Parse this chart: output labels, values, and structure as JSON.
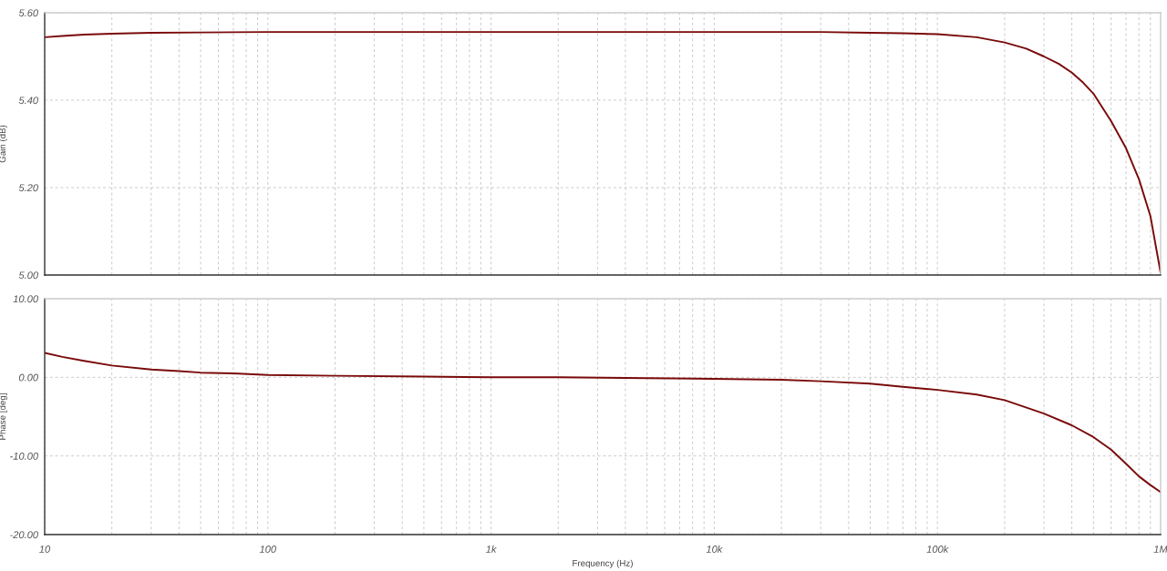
{
  "chart_data": [
    {
      "type": "line",
      "ylabel": "Gain (dB)",
      "log": "x",
      "grid": true,
      "tick_labels": "y",
      "xlim": [
        10,
        1000000
      ],
      "xticks": [
        {
          "value": 10,
          "label": null
        },
        {
          "value": 100,
          "label": null
        },
        {
          "value": 1000,
          "label": null
        },
        {
          "value": 10000,
          "label": null
        },
        {
          "value": 100000,
          "label": null
        },
        {
          "value": 1000000,
          "label": null
        }
      ],
      "ylim": [
        5.0,
        5.6
      ],
      "yticks": [
        {
          "value": 5.0,
          "label": "5.00"
        },
        {
          "value": 5.2,
          "label": "5.20"
        },
        {
          "value": 5.4,
          "label": "5.40"
        },
        {
          "value": 5.6,
          "label": "5.60"
        }
      ],
      "x": [
        10,
        12,
        15,
        20,
        30,
        50,
        100,
        200,
        500,
        1000,
        2000,
        5000,
        10000,
        20000,
        30000,
        50000,
        70000,
        100000,
        150000,
        200000,
        250000,
        300000,
        350000,
        400000,
        450000,
        500000,
        600000,
        700000,
        800000,
        900000,
        1000000
      ],
      "series": [
        {
          "color": "#7a0a0a",
          "values": [
            5.544,
            5.547,
            5.55,
            5.552,
            5.554,
            5.555,
            5.556,
            5.556,
            5.556,
            5.556,
            5.556,
            5.556,
            5.556,
            5.556,
            5.556,
            5.554,
            5.553,
            5.551,
            5.544,
            5.532,
            5.518,
            5.5,
            5.483,
            5.463,
            5.44,
            5.415,
            5.352,
            5.29,
            5.219,
            5.135,
            5.005
          ]
        }
      ]
    },
    {
      "type": "line",
      "ylabel": "Phase [deg]",
      "xlabel": "Frequency (Hz)",
      "log": "x",
      "grid": true,
      "xlim": [
        10,
        1000000
      ],
      "xticks": [
        10,
        100,
        {
          "value": 1000,
          "label": "1k"
        },
        {
          "value": 10000,
          "label": "10k"
        },
        {
          "value": 100000,
          "label": "100k"
        },
        {
          "value": 1000000,
          "label": "1M"
        }
      ],
      "ylim": [
        -20,
        10
      ],
      "yticks": [
        {
          "value": -20,
          "label": "-20.00"
        },
        {
          "value": -10,
          "label": "-10.00"
        },
        {
          "value": 0,
          "label": "0.00"
        },
        {
          "value": 10,
          "label": "10.00"
        }
      ],
      "x": [
        10,
        12,
        15,
        20,
        30,
        40,
        50,
        70,
        100,
        200,
        500,
        1000,
        2000,
        5000,
        10000,
        20000,
        30000,
        50000,
        70000,
        100000,
        150000,
        200000,
        300000,
        400000,
        500000,
        600000,
        700000,
        800000,
        900000,
        1000000
      ],
      "series": [
        {
          "color": "#7a0a0a",
          "values": [
            3.1,
            2.6,
            2.1,
            1.5,
            1.0,
            0.8,
            0.6,
            0.5,
            0.3,
            0.2,
            0.1,
            0.0,
            0.0,
            -0.1,
            -0.2,
            -0.3,
            -0.5,
            -0.8,
            -1.2,
            -1.6,
            -2.2,
            -2.9,
            -4.6,
            -6.1,
            -7.6,
            -9.2,
            -11.0,
            -12.6,
            -13.7,
            -14.6
          ]
        }
      ]
    }
  ]
}
